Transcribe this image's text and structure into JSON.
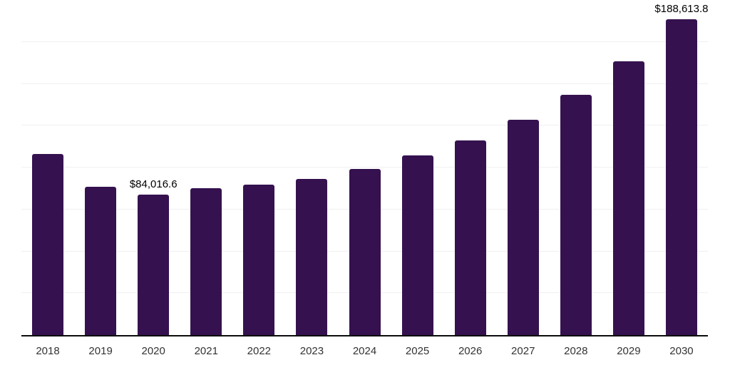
{
  "chart_data": {
    "type": "bar",
    "title": "",
    "xlabel": "",
    "ylabel": "",
    "categories": [
      "2018",
      "2019",
      "2020",
      "2021",
      "2022",
      "2023",
      "2024",
      "2025",
      "2026",
      "2027",
      "2028",
      "2029",
      "2030"
    ],
    "values": [
      108100,
      88600,
      84016.6,
      87600,
      89900,
      93300,
      99200,
      107300,
      116200,
      128500,
      143300,
      163200,
      188613.8
    ],
    "data_labels": [
      "",
      "",
      "$84,016.6",
      "",
      "",
      "",
      "",
      "",
      "",
      "",
      "",
      "",
      "$188,613.8"
    ],
    "ylim": [
      0,
      200000
    ],
    "gridline_step": 25000,
    "grid": "horizontal",
    "legend": "none",
    "colors": {
      "bar": "#35124f",
      "axis_line": "#0c0c0c",
      "gridline": "#f0f0f0",
      "tick_label": "#333333",
      "data_label": "#000000",
      "background": "#ffffff"
    }
  }
}
